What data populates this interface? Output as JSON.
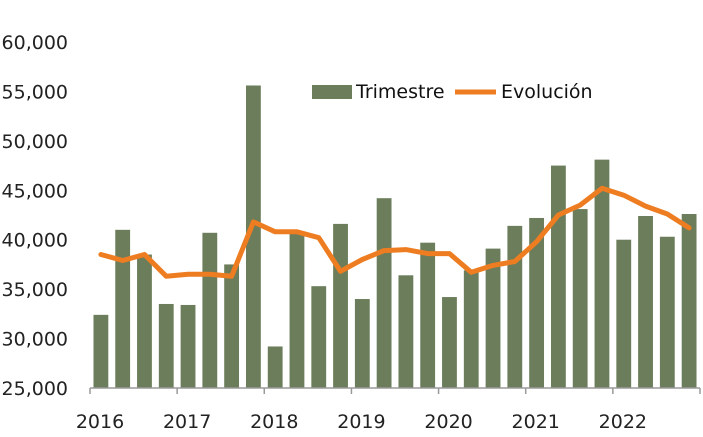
{
  "chart_data": {
    "type": "bar",
    "title": "",
    "xlabel": "",
    "ylabel": "",
    "ylim": [
      25000,
      60000
    ],
    "y_ticks": [
      25000,
      30000,
      35000,
      40000,
      45000,
      50000,
      55000,
      60000
    ],
    "y_tick_labels": [
      "25,000",
      "30,000",
      "35,000",
      "40,000",
      "45,000",
      "50,000",
      "55,000",
      "60,000"
    ],
    "x_tick_labels": [
      "2016",
      "2017",
      "2018",
      "2019",
      "2020",
      "2021",
      "2022"
    ],
    "grid": false,
    "legend_position": "top-right",
    "categories": [
      "2016 T1",
      "2016 T2",
      "2016 T3",
      "2016 T4",
      "2017 T1",
      "2017 T2",
      "2017 T3",
      "2017 T4",
      "2018 T1",
      "2018 T2",
      "2018 T3",
      "2018 T4",
      "2019 T1",
      "2019 T2",
      "2019 T3",
      "2019 T4",
      "2020 T1",
      "2020 T2",
      "2020 T3",
      "2020 T4",
      "2021 T1",
      "2021 T2",
      "2021 T3",
      "2021 T4",
      "2022 T1",
      "2022 T2",
      "2022 T3",
      "2022 T4"
    ],
    "series": [
      {
        "name": "Trimestre",
        "type": "bar",
        "color": "#6b7d5a",
        "values": [
          32400,
          41000,
          38500,
          33500,
          33400,
          40700,
          37500,
          55600,
          29200,
          40700,
          35300,
          41600,
          34000,
          44200,
          36400,
          39700,
          34200,
          36900,
          39100,
          41400,
          42200,
          47500,
          43100,
          48100,
          40000,
          42400,
          40300,
          42600
        ]
      },
      {
        "name": "Evolución",
        "type": "line",
        "color": "#ee7d22",
        "values": [
          38500,
          37900,
          38500,
          36300,
          36500,
          36500,
          36300,
          41800,
          40800,
          40800,
          40200,
          36800,
          38000,
          38900,
          39000,
          38600,
          38600,
          36700,
          37400,
          37800,
          39800,
          42500,
          43500,
          45200,
          44500,
          43400,
          42600,
          41200
        ]
      }
    ]
  }
}
